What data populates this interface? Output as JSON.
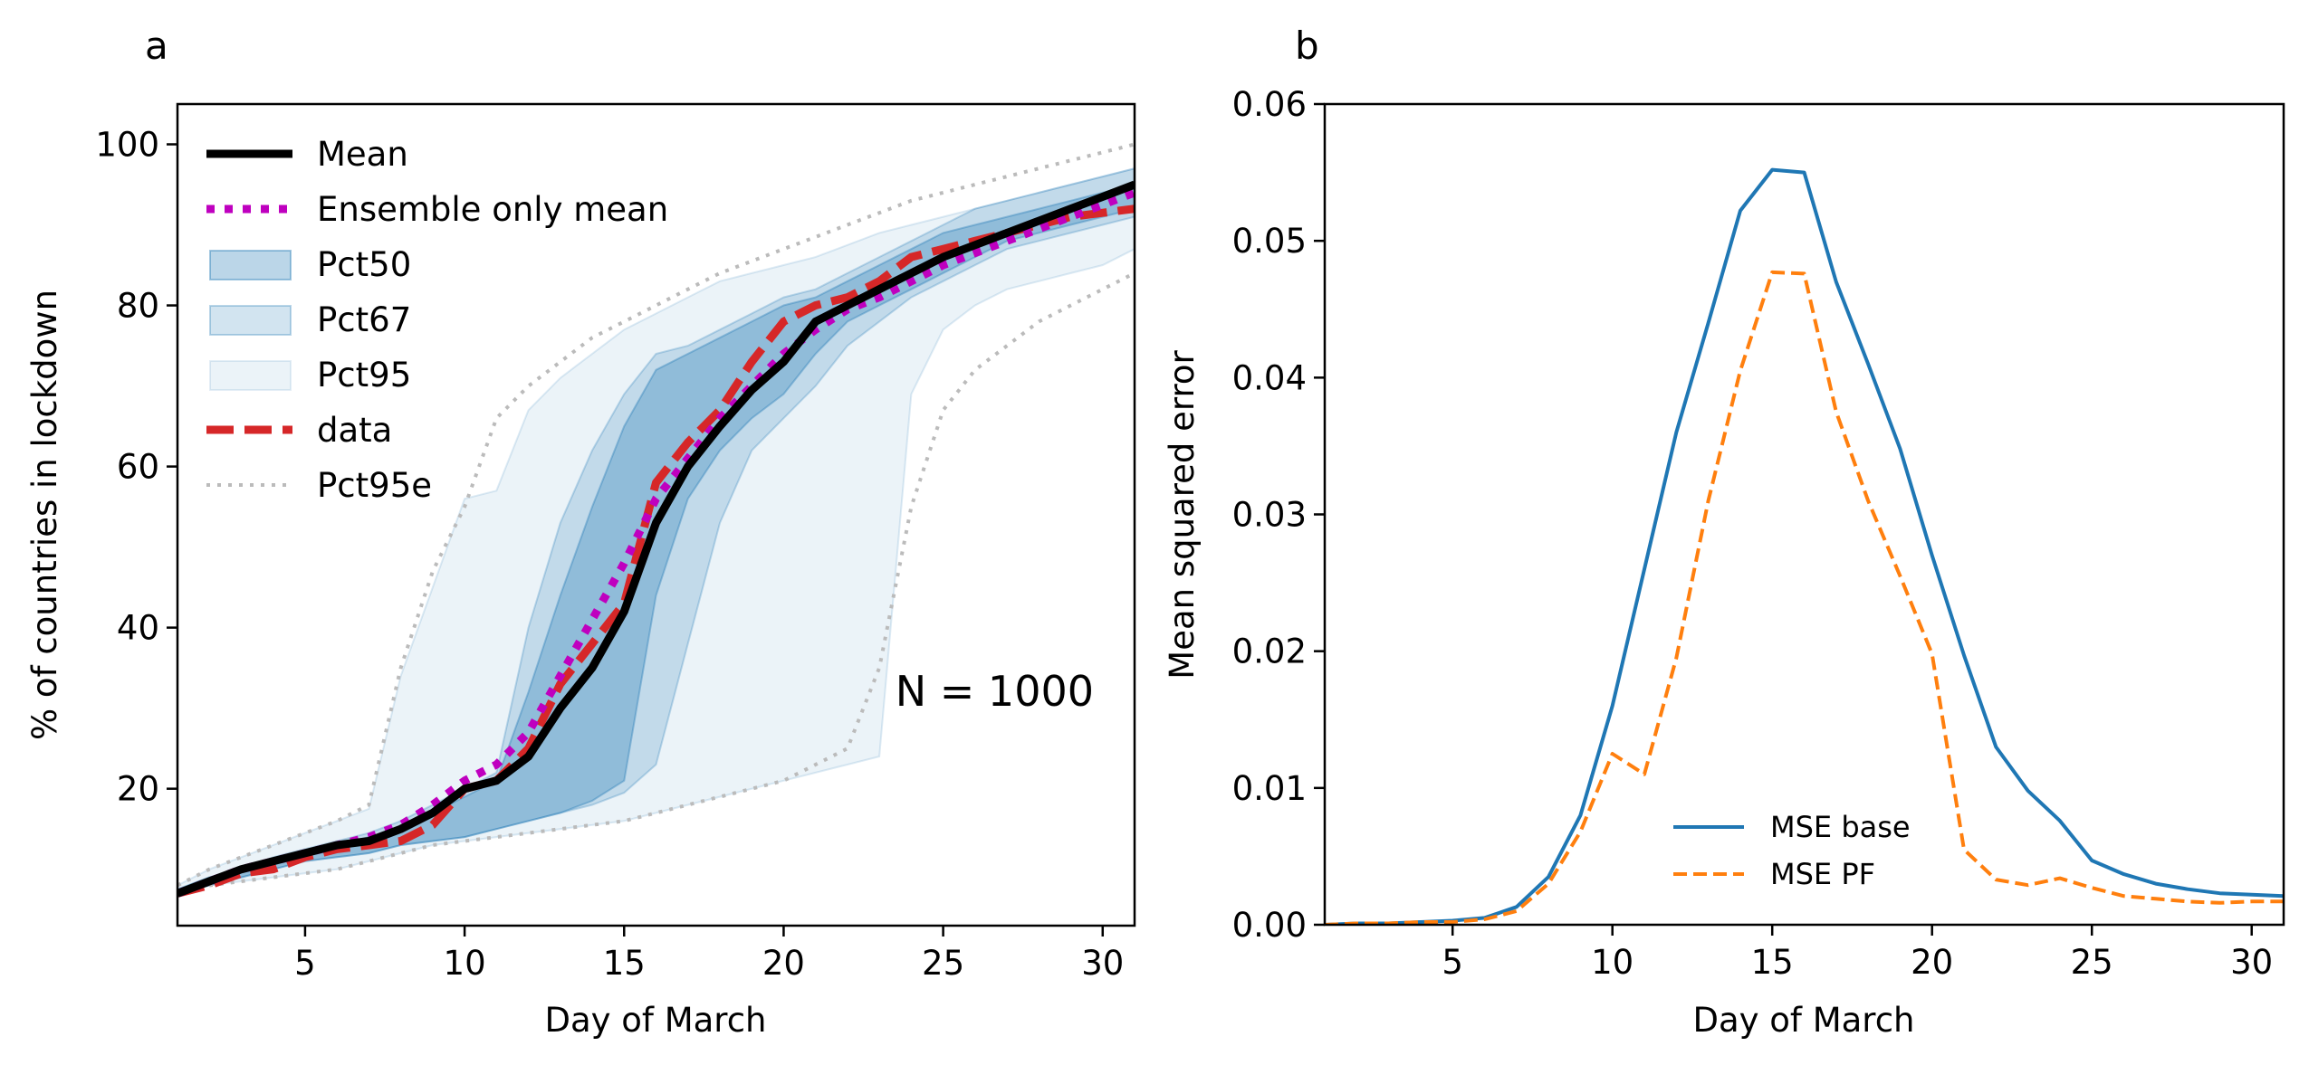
{
  "chart_data": [
    {
      "panel_label": "a",
      "type": "line",
      "xlabel": "Day of March",
      "ylabel": "% of countries in lockdown",
      "xlim": [
        1,
        31
      ],
      "ylim": [
        3,
        105
      ],
      "xticks": [
        "5",
        "10",
        "15",
        "20",
        "25",
        "30"
      ],
      "yticks": [
        "20",
        "40",
        "60",
        "80",
        "100"
      ],
      "annotation": "N = 1000",
      "legend_position": "upper-left",
      "x": [
        1,
        2,
        3,
        4,
        5,
        6,
        7,
        8,
        9,
        10,
        11,
        12,
        13,
        14,
        15,
        16,
        17,
        18,
        19,
        20,
        21,
        22,
        23,
        24,
        25,
        26,
        27,
        28,
        29,
        30,
        31
      ],
      "bands": [
        {
          "name": "Pct95",
          "color": "#1f77b4",
          "opacity": 0.09,
          "lower": [
            7,
            8,
            8.5,
            9,
            9.5,
            10,
            11,
            12,
            13,
            13.5,
            14,
            14.5,
            15,
            15.5,
            16,
            17,
            18,
            19,
            20,
            21,
            22,
            23,
            24,
            69,
            77,
            80,
            82,
            83,
            84,
            85,
            87
          ],
          "upper": [
            8,
            10,
            11.5,
            13,
            14.5,
            16,
            17.5,
            34,
            45,
            56,
            57,
            67,
            71,
            74,
            77,
            79,
            81,
            83,
            84,
            85,
            86,
            87.5,
            89,
            90,
            91,
            92,
            93,
            94,
            95,
            96,
            97
          ]
        },
        {
          "name": "Pct67",
          "color": "#1f77b4",
          "opacity": 0.2,
          "lower": [
            7,
            8,
            9,
            10,
            11,
            11.5,
            12,
            13,
            13.5,
            14,
            15,
            16,
            17,
            18,
            19.5,
            23,
            38,
            53,
            62,
            66,
            70,
            75,
            78,
            81,
            83,
            85,
            87,
            88,
            89,
            90,
            91
          ],
          "upper": [
            7.5,
            9,
            10,
            11.5,
            12.5,
            13.5,
            14.5,
            16,
            18,
            20,
            22,
            40,
            53,
            62,
            69,
            74,
            75,
            77,
            79,
            81,
            82,
            84,
            86,
            88,
            90,
            92,
            93,
            94,
            95,
            96,
            97
          ]
        },
        {
          "name": "Pct50",
          "color": "#1f77b4",
          "opacity": 0.3,
          "lower": [
            7,
            8,
            9,
            10,
            11,
            11.5,
            12,
            13,
            13.5,
            14,
            15,
            16,
            17,
            18.5,
            21,
            44,
            56,
            62,
            66,
            69,
            74,
            78,
            80,
            82,
            84,
            86,
            88,
            89,
            90,
            91,
            92
          ],
          "upper": [
            7.5,
            9,
            10,
            11,
            12,
            13,
            14,
            15,
            17,
            19,
            21,
            32,
            44,
            55,
            65,
            72,
            74,
            76,
            78,
            80,
            81,
            83,
            85,
            87,
            89,
            90,
            91,
            92,
            93,
            94,
            95
          ]
        }
      ],
      "series": [
        {
          "name": "Mean",
          "color": "#000000",
          "style": "solid",
          "values": [
            7,
            8.5,
            10,
            11,
            12,
            13,
            13.5,
            15,
            17,
            20,
            21,
            24,
            30,
            35,
            42,
            53,
            60,
            65,
            69.5,
            73,
            78,
            80,
            82,
            84,
            86,
            87.5,
            89,
            90.5,
            92,
            93.5,
            95
          ]
        },
        {
          "name": "Ensemble only mean",
          "color": "#bf00bf",
          "style": "dotted",
          "values": [
            7,
            8.5,
            10,
            11,
            12,
            13,
            14,
            15.5,
            18,
            21,
            23,
            27,
            34,
            41,
            48,
            56,
            61,
            66,
            70,
            74,
            77,
            79.5,
            81,
            83,
            85,
            86.5,
            88,
            89.5,
            91,
            92.5,
            94
          ]
        },
        {
          "name": "data",
          "color": "#d62728",
          "style": "dashed",
          "values": [
            7,
            8,
            9.5,
            10,
            11.5,
            12.5,
            13,
            13.5,
            15.5,
            20,
            21,
            25,
            33,
            38,
            43,
            58,
            63,
            67,
            73,
            78,
            80,
            81,
            83,
            86,
            87,
            88,
            89,
            90,
            91,
            91.5,
            92
          ]
        },
        {
          "name": "Pct95e",
          "color": "#bbbbbb",
          "style": "dotted-lower",
          "values": [
            7,
            8,
            8.5,
            9,
            9.5,
            10,
            11,
            12,
            13,
            13.5,
            14,
            14.5,
            15,
            15.5,
            16,
            17,
            18,
            19,
            20,
            21,
            23,
            25,
            35,
            55,
            67,
            72,
            75,
            78,
            80,
            82,
            84
          ]
        },
        {
          "name": "Pct95e",
          "color": "#bbbbbb",
          "style": "dotted-upper",
          "values": [
            8,
            10,
            11.5,
            13,
            14.5,
            16,
            18,
            35,
            47,
            55,
            66,
            70,
            73,
            76,
            78,
            80,
            82,
            84,
            85.5,
            87,
            88.5,
            90,
            91.5,
            93,
            94,
            95,
            96,
            97,
            98,
            99,
            100
          ]
        }
      ],
      "legend": [
        "Mean",
        "Ensemble only mean",
        "Pct50",
        "Pct67",
        "Pct95",
        "data",
        "Pct95e"
      ]
    },
    {
      "panel_label": "b",
      "type": "line",
      "xlabel": "Day of March",
      "ylabel": "Mean squared error",
      "xlim": [
        1,
        31
      ],
      "ylim": [
        0,
        0.06
      ],
      "xticks": [
        "5",
        "10",
        "15",
        "20",
        "25",
        "30"
      ],
      "yticks": [
        "0.00",
        "0.01",
        "0.02",
        "0.03",
        "0.04",
        "0.05",
        "0.06"
      ],
      "legend_position": "lower-center",
      "x": [
        1,
        2,
        3,
        4,
        5,
        6,
        7,
        8,
        9,
        10,
        11,
        12,
        13,
        14,
        15,
        16,
        17,
        18,
        19,
        20,
        21,
        22,
        23,
        24,
        25,
        26,
        27,
        28,
        29,
        30,
        31
      ],
      "series": [
        {
          "name": "MSE base",
          "color": "#1f77b4",
          "style": "solid",
          "values": [
            0.0,
            0.0001,
            0.0001,
            0.0002,
            0.0003,
            0.0005,
            0.0013,
            0.0035,
            0.008,
            0.016,
            0.026,
            0.036,
            0.044,
            0.0522,
            0.0552,
            0.055,
            0.047,
            0.041,
            0.0348,
            0.027,
            0.0197,
            0.013,
            0.0098,
            0.0076,
            0.0047,
            0.0037,
            0.003,
            0.0026,
            0.0023,
            0.0022,
            0.0021
          ]
        },
        {
          "name": "MSE PF",
          "color": "#ff7f0e",
          "style": "dashed",
          "values": [
            0.0,
            0.0001,
            0.0001,
            0.0002,
            0.0002,
            0.0004,
            0.001,
            0.003,
            0.0068,
            0.0125,
            0.011,
            0.0195,
            0.031,
            0.0405,
            0.0477,
            0.0476,
            0.0375,
            0.031,
            0.0255,
            0.0198,
            0.0055,
            0.0033,
            0.0029,
            0.0034,
            0.0027,
            0.0021,
            0.0019,
            0.0017,
            0.0016,
            0.0017,
            0.0017
          ]
        }
      ],
      "legend": [
        "MSE base",
        "MSE PF"
      ]
    }
  ]
}
